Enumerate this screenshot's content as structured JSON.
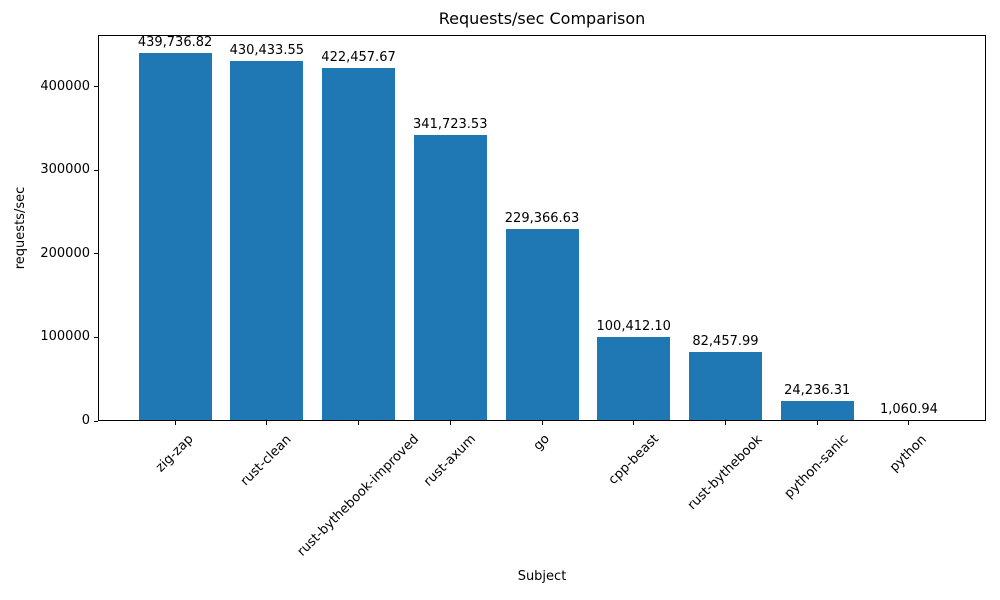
{
  "chart_data": {
    "type": "bar",
    "title": "Requests/sec Comparison",
    "xlabel": "Subject",
    "ylabel": "requests/sec",
    "categories": [
      "zig-zap",
      "rust-clean",
      "rust-bythebook-improved",
      "rust-axum",
      "go",
      "cpp-beast",
      "rust-bythebook",
      "python-sanic",
      "python"
    ],
    "values": [
      439736.82,
      430433.55,
      422457.67,
      341723.53,
      229366.63,
      100412.1,
      82457.99,
      24236.31,
      1060.94
    ],
    "value_labels": [
      "439,736.82",
      "430,433.55",
      "422,457.67",
      "341,723.53",
      "229,366.63",
      "100,412.10",
      "82,457.99",
      "24,236.31",
      "1,060.94"
    ],
    "yticks": [
      0,
      100000,
      200000,
      300000,
      400000
    ],
    "ytick_labels": [
      "0",
      "100000",
      "200000",
      "300000",
      "400000"
    ],
    "ylim": [
      0,
      461723.66
    ],
    "grid": false,
    "legend": "none",
    "bar_color": "#1f77b4",
    "text_color": "#000000"
  }
}
